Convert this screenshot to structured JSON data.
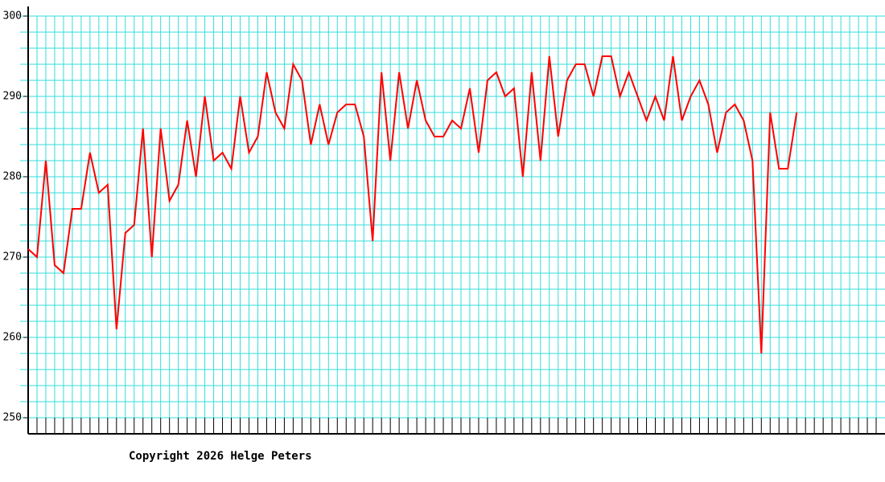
{
  "chart_data": {
    "type": "line",
    "color": "#ff0000",
    "grid_color": "#33dddd",
    "grid": true,
    "values": [
      271,
      270,
      282,
      269,
      268,
      276,
      276,
      283,
      278,
      279,
      261,
      273,
      274,
      286,
      270,
      286,
      277,
      279,
      287,
      280,
      290,
      282,
      283,
      281,
      290,
      283,
      285,
      293,
      288,
      286,
      294,
      292,
      284,
      289,
      284,
      288,
      289,
      289,
      285,
      272,
      293,
      282,
      293,
      286,
      292,
      287,
      285,
      285,
      287,
      286,
      291,
      283,
      292,
      293,
      290,
      291,
      280,
      293,
      282,
      295,
      285,
      292,
      294,
      294,
      290,
      295,
      295,
      290,
      293,
      290,
      287,
      290,
      287,
      295,
      287,
      290,
      292,
      289,
      283,
      288,
      289,
      287,
      282,
      258,
      288,
      281,
      281,
      288
    ],
    "xlim": [
      0,
      97
    ],
    "xticks": [
      0,
      1,
      2,
      3,
      4,
      5,
      6,
      7,
      8,
      9,
      10,
      11,
      12,
      13,
      14,
      15,
      16,
      17,
      18,
      19,
      20,
      21,
      22,
      23,
      24,
      25,
      26,
      27,
      28,
      29,
      30,
      31,
      32,
      33,
      34,
      35,
      36,
      37,
      38,
      39,
      40,
      41,
      42,
      43,
      44,
      45,
      46,
      47,
      48,
      49,
      50,
      51,
      52,
      53,
      54,
      55,
      56,
      57,
      58,
      59,
      60,
      61,
      62,
      63,
      64,
      65,
      66,
      67,
      68,
      69,
      70,
      71,
      72,
      73,
      74,
      75,
      76,
      77,
      78,
      79,
      80,
      81,
      82,
      83,
      84,
      85,
      86,
      87,
      88,
      89,
      90,
      91,
      92,
      93,
      94,
      95,
      96
    ],
    "ylim": [
      248,
      301
    ],
    "yticks": [
      250,
      260,
      270,
      280,
      290,
      300
    ],
    "yminorticks": [
      250,
      252,
      254,
      256,
      258,
      260,
      262,
      264,
      266,
      268,
      270,
      272,
      274,
      276,
      278,
      280,
      282,
      284,
      286,
      288,
      290,
      292,
      294,
      296,
      298,
      300
    ],
    "footer": "Copyright 2026 Helge Peters"
  }
}
